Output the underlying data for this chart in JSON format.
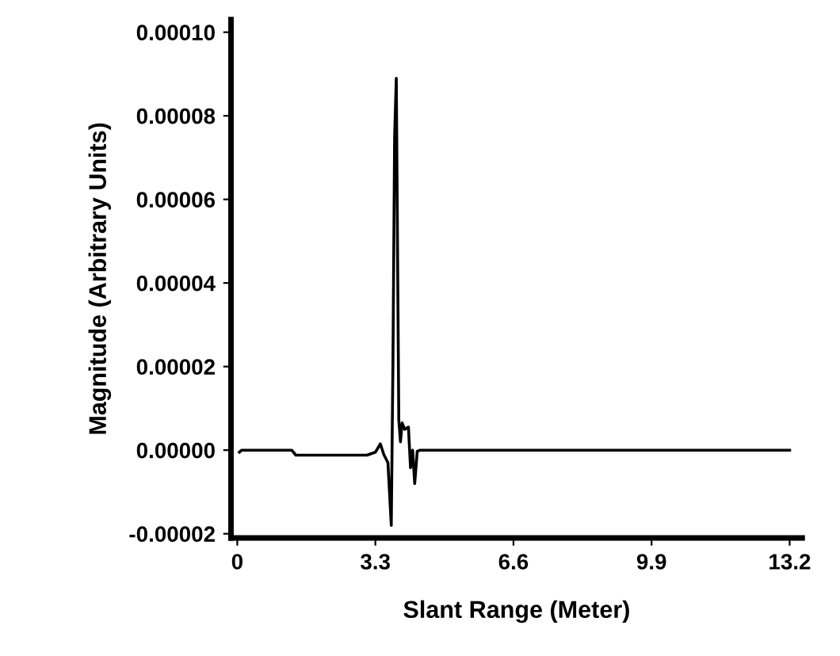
{
  "chart_data": {
    "type": "line",
    "xlabel": "Slant Range (Meter)",
    "ylabel": "Magnitude (Arbitrary Units)",
    "x": [
      0.05,
      0.1,
      1.3,
      1.4,
      3.1,
      3.3,
      3.42,
      3.5,
      3.6,
      3.68,
      3.72,
      3.76,
      3.8,
      3.86,
      3.9,
      3.94,
      4.0,
      4.09,
      4.14,
      4.19,
      4.24,
      4.3,
      4.37,
      5.0,
      13.2
    ],
    "series": [
      {
        "color": "#000000",
        "values": [
          -5e-07,
          0.0,
          0.0,
          -1.2e-06,
          -1.2e-06,
          -5e-07,
          1.5e-06,
          -1e-06,
          -3e-06,
          -1.8e-05,
          2.1e-05,
          7.5e-05,
          8.9e-05,
          7.2e-06,
          2e-06,
          6.5e-06,
          5e-06,
          5.5e-06,
          -4.2e-06,
          0.0,
          -8e-06,
          -3e-07,
          0.0,
          0.0,
          0.0
        ]
      }
    ],
    "xlim": [
      -0.15,
      13.5
    ],
    "xticks": [
      0,
      3.3,
      6.6,
      9.9,
      13.2
    ],
    "ylim": [
      -2.1e-05,
      0.000103
    ],
    "yticks": [
      {
        "value": -2e-05,
        "label": "-0.00002"
      },
      {
        "value": 0,
        "label": "0.00000"
      },
      {
        "value": 2e-05,
        "label": "0.00002"
      },
      {
        "value": 4e-05,
        "label": "0.00004"
      },
      {
        "value": 6e-05,
        "label": "0.00006"
      },
      {
        "value": 8e-05,
        "label": "0.00008"
      },
      {
        "value": 0.0001,
        "label": "0.00010"
      }
    ],
    "grid": false,
    "legend": false,
    "marker": "none",
    "line_style": "solid"
  }
}
